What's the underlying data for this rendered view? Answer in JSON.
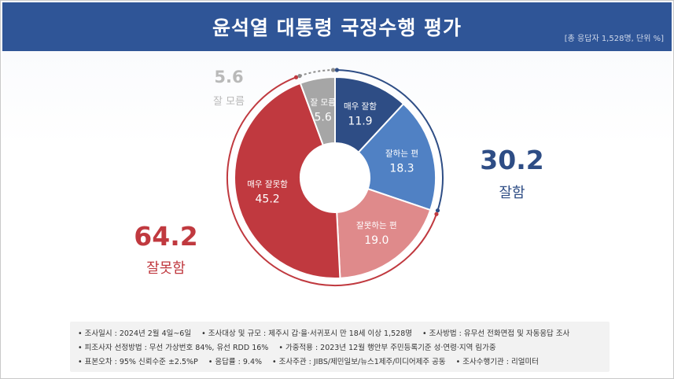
{
  "header": {
    "title": "윤석열 대통령 국정수행 평가",
    "unit_note": "[총 응답자 1,528명, 단위 %]"
  },
  "summary": {
    "positive": {
      "value": "30.2",
      "label": "잘함",
      "color": "#2e4d85"
    },
    "negative": {
      "value": "64.2",
      "label": "잘못함",
      "color": "#c0393f"
    },
    "unknown": {
      "value": "5.6",
      "label": "잘 모름",
      "color": "#b9b9b9"
    }
  },
  "chart_data": {
    "type": "pie",
    "title": "윤석열 대통령 국정수행 평가",
    "slices": [
      {
        "label": "매우 잘함",
        "value": 11.9,
        "display": "11.9",
        "color": "#2e4d85"
      },
      {
        "label": "잘하는 편",
        "value": 18.3,
        "display": "18.3",
        "color": "#5081c4"
      },
      {
        "label": "잘못하는 편",
        "value": 19.0,
        "display": "19.0",
        "color": "#df8a8b"
      },
      {
        "label": "매우 잘못함",
        "value": 45.2,
        "display": "45.2",
        "color": "#c0393f"
      },
      {
        "label": "잘 모름",
        "value": 5.6,
        "display": "5.6",
        "color": "#a6a6a6"
      }
    ]
  },
  "footer": {
    "row1": [
      "• 조사일시 : 2024년 2월 4일~6일",
      "• 조사대상 및 규모 : 제주시 갑·을·서귀포시 만 18세 이상 1,528명",
      "• 조사방법 : 유무선 전화면접 및 자동응답 조사"
    ],
    "row2": [
      "• 피조사자 선정방법 : 무선 가상번호 84%, 유선 RDD 16%",
      "• 가중적용 : 2023년 12월 행안부 주민등록기준 성·연령·지역 림가중"
    ],
    "row3": [
      "• 표본오차 : 95% 신뢰수준 ±2.5%P",
      "• 응답률 : 9.4%",
      "• 조사주관 : JIBS/제민일보/뉴스1제주/미디어제주 공동",
      "• 조사수행기관 : 리얼미터"
    ]
  }
}
